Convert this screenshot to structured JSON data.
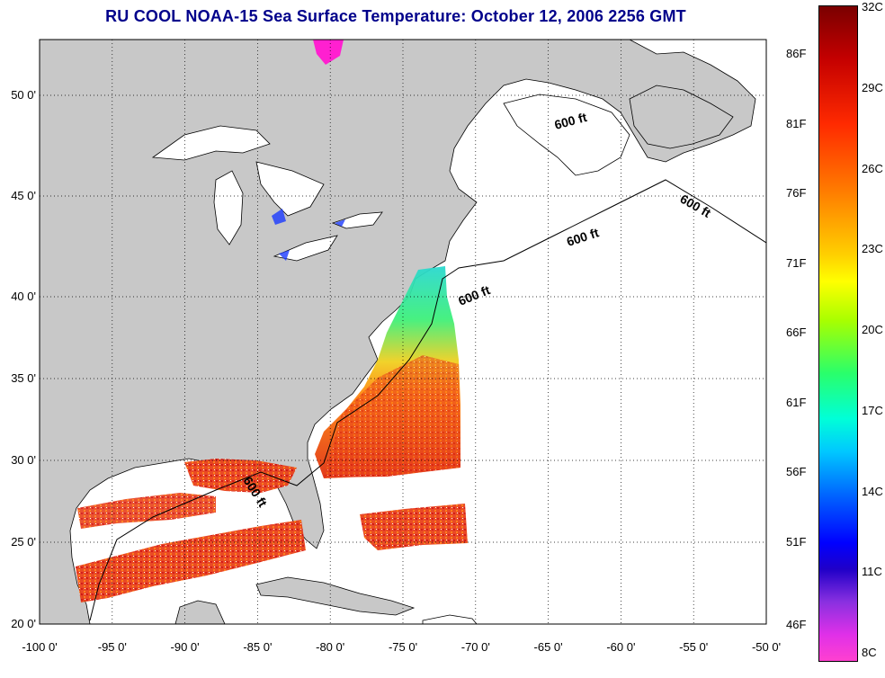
{
  "title": "RU COOL  NOAA-15  Sea Surface Temperature:  October 12, 2006 2256 GMT",
  "map": {
    "lat_ticks": [
      "20 0'",
      "25 0'",
      "30 0'",
      "35 0'",
      "40 0'",
      "45 0'",
      "50 0'"
    ],
    "lon_ticks": [
      "-100 0'",
      "-95 0'",
      "-90 0'",
      "-85 0'",
      "-80 0'",
      "-75 0'",
      "-70 0'",
      "-65 0'",
      "-60 0'",
      "-55 0'",
      "-50 0'"
    ],
    "contour_label": "600 ft",
    "land_color": "#c8c8c8",
    "grid_style": "dotted",
    "grid": true
  },
  "colorbar": {
    "fahrenheit_labels": [
      "86F",
      "81F",
      "76F",
      "71F",
      "66F",
      "61F",
      "56F",
      "51F",
      "46F"
    ],
    "celsius_labels": [
      "32C",
      "29C",
      "26C",
      "23C",
      "20C",
      "17C",
      "14C",
      "11C",
      "8C"
    ]
  }
}
